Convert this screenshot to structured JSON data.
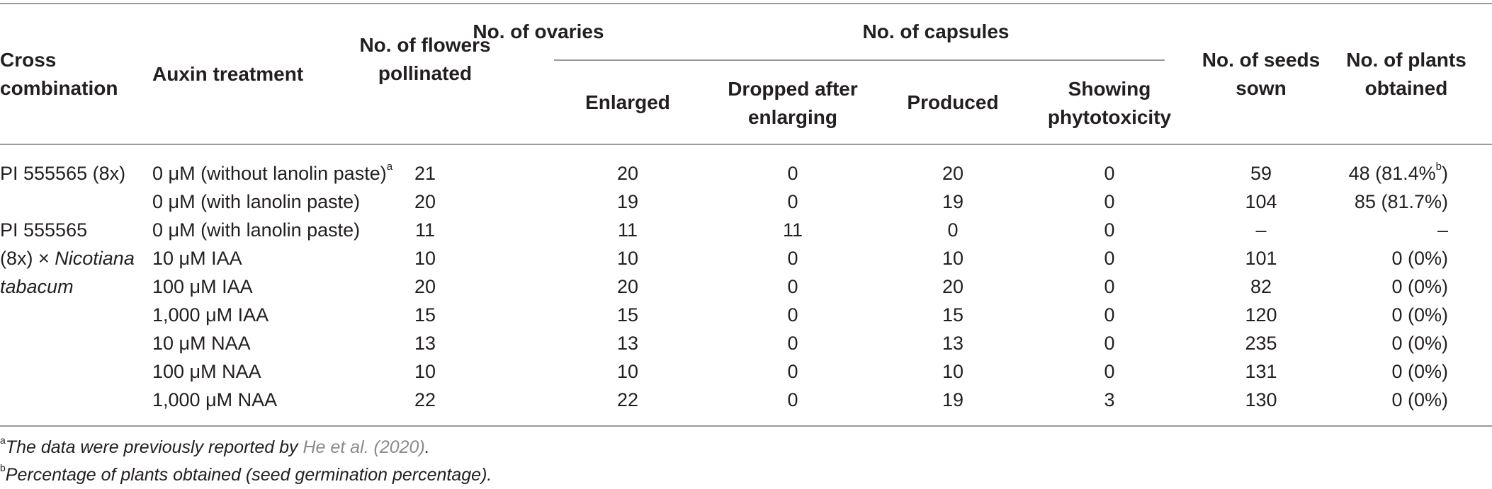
{
  "headers": {
    "cross_combination": "Cross combination",
    "auxin_treatment": "Auxin treatment",
    "flowers_pollinated": "No. of flowers pollinated",
    "ovaries_group": "No. of ovaries",
    "enlarged": "Enlarged",
    "dropped": "Dropped after enlarging",
    "capsules_group": "No. of capsules",
    "produced": "Produced",
    "phytotoxicity": "Showing phytotoxicity",
    "seeds_sown": "No. of seeds sown",
    "plants_obtained": "No. of plants obtained"
  },
  "groups": {
    "g1": "PI 555565 (8x)",
    "g2_line1": "PI 555565",
    "g2_line2_prefix": "(8x) × ",
    "g2_line2_italic": "Nicotiana",
    "g2_line3_italic": "tabacum"
  },
  "rows": [
    {
      "treatment": "0 μM (without lanolin paste)",
      "treatment_sup": "a",
      "flowers": "21",
      "enlarged": "20",
      "dropped": "0",
      "produced": "20",
      "phyto": "0",
      "seeds": "59",
      "plants": "48 (81.4%",
      "plants_sup": "b",
      "plants_tail": ")"
    },
    {
      "treatment": "0 μM (with lanolin paste)",
      "flowers": "20",
      "enlarged": "19",
      "dropped": "0",
      "produced": "19",
      "phyto": "0",
      "seeds": "104",
      "plants": "85 (81.7%)"
    },
    {
      "treatment": "0 μM (with lanolin paste)",
      "flowers": "11",
      "enlarged": "11",
      "dropped": "11",
      "produced": "0",
      "phyto": "0",
      "seeds": "–",
      "plants": "–"
    },
    {
      "treatment": "10 μM IAA",
      "flowers": "10",
      "enlarged": "10",
      "dropped": "0",
      "produced": "10",
      "phyto": "0",
      "seeds": "101",
      "plants": "0 (0%)"
    },
    {
      "treatment": "100 μM IAA",
      "flowers": "20",
      "enlarged": "20",
      "dropped": "0",
      "produced": "20",
      "phyto": "0",
      "seeds": "82",
      "plants": "0 (0%)"
    },
    {
      "treatment": "1,000 μM IAA",
      "flowers": "15",
      "enlarged": "15",
      "dropped": "0",
      "produced": "15",
      "phyto": "0",
      "seeds": "120",
      "plants": "0 (0%)"
    },
    {
      "treatment": "10 μM NAA",
      "flowers": "13",
      "enlarged": "13",
      "dropped": "0",
      "produced": "13",
      "phyto": "0",
      "seeds": "235",
      "plants": "0 (0%)"
    },
    {
      "treatment": "100 μM NAA",
      "flowers": "10",
      "enlarged": "10",
      "dropped": "0",
      "produced": "10",
      "phyto": "0",
      "seeds": "131",
      "plants": "0 (0%)"
    },
    {
      "treatment": "1,000 μM NAA",
      "flowers": "22",
      "enlarged": "22",
      "dropped": "0",
      "produced": "19",
      "phyto": "3",
      "seeds": "130",
      "plants": "0 (0%)"
    }
  ],
  "footnotes": {
    "a_mark": "a",
    "a_text": "The data were previously reported by ",
    "a_link": "He et al. (2020)",
    "a_end": ".",
    "b_mark": "b",
    "b_text": "Percentage of plants obtained (seed germination percentage)."
  }
}
